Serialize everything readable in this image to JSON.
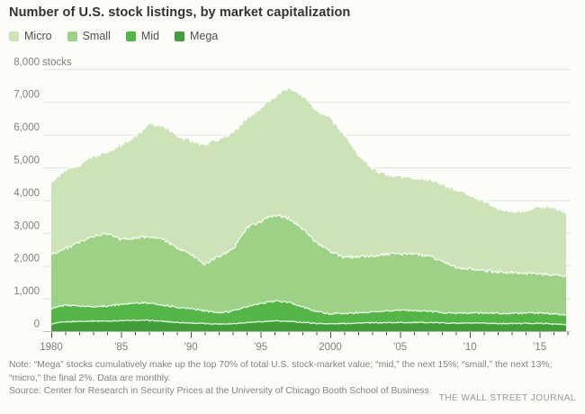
{
  "title": "Number of U.S. stock listings, by market capitalization",
  "legend": [
    {
      "label": "Micro"
    },
    {
      "label": "Small"
    },
    {
      "label": "Mid"
    },
    {
      "label": "Mega"
    }
  ],
  "chart_data": {
    "type": "area",
    "stacked": true,
    "title": "Number of U.S. stock listings, by market capitalization",
    "unit_label": "stocks",
    "grid": "horizontal",
    "legend_position": "top-left",
    "ylim": [
      0,
      8000
    ],
    "xlim": [
      1980,
      2017
    ],
    "x": [
      1980,
      1981,
      1982,
      1983,
      1984,
      1985,
      1986,
      1987,
      1988,
      1989,
      1990,
      1991,
      1992,
      1993,
      1994,
      1995,
      1996,
      1997,
      1998,
      1999,
      2000,
      2001,
      2002,
      2003,
      2004,
      2005,
      2006,
      2007,
      2008,
      2009,
      2010,
      2011,
      2012,
      2013,
      2014,
      2015,
      2016,
      2016.9
    ],
    "series": [
      {
        "name": "Mega",
        "color": "#419e39",
        "values": [
          220,
          285,
          300,
          310,
          310,
          320,
          330,
          330,
          300,
          270,
          250,
          230,
          220,
          230,
          265,
          290,
          310,
          300,
          270,
          240,
          225,
          235,
          250,
          255,
          260,
          265,
          265,
          265,
          255,
          245,
          245,
          240,
          235,
          235,
          240,
          240,
          220,
          195
        ]
      },
      {
        "name": "Mid",
        "color": "#55b648",
        "values": [
          460,
          515,
          470,
          435,
          460,
          500,
          535,
          530,
          500,
          460,
          440,
          390,
          340,
          390,
          475,
          550,
          610,
          580,
          480,
          360,
          300,
          305,
          310,
          325,
          360,
          375,
          365,
          350,
          315,
          300,
          310,
          320,
          310,
          310,
          315,
          320,
          310,
          305
        ]
      },
      {
        "name": "Small",
        "color": "#9dd186",
        "values": [
          1670,
          1720,
          1930,
          2155,
          2210,
          1980,
          1985,
          2030,
          2000,
          1820,
          1660,
          1430,
          1730,
          1860,
          2410,
          2510,
          2630,
          2570,
          2400,
          2100,
          1925,
          1710,
          1720,
          1720,
          1730,
          1700,
          1740,
          1685,
          1580,
          1405,
          1345,
          1290,
          1275,
          1245,
          1215,
          1200,
          1190,
          1190
        ]
      },
      {
        "name": "Micro",
        "color": "#cce2b7",
        "values": [
          2210,
          2380,
          2380,
          2450,
          2470,
          2890,
          3100,
          3410,
          3500,
          3420,
          3480,
          3640,
          3590,
          3570,
          3350,
          3450,
          3600,
          4000,
          4050,
          4050,
          4050,
          3750,
          3120,
          2650,
          2450,
          2380,
          2310,
          2320,
          2350,
          2380,
          2250,
          2130,
          1940,
          1860,
          1910,
          2050,
          2070,
          1930
        ]
      }
    ],
    "y_ticks": [
      {
        "label": "8,000",
        "value": 8000
      },
      {
        "label": "7,000",
        "value": 7000
      },
      {
        "label": "6,000",
        "value": 6000
      },
      {
        "label": "5,000",
        "value": 5000
      },
      {
        "label": "4,000",
        "value": 4000
      },
      {
        "label": "3,000",
        "value": 3000
      },
      {
        "label": "2,000",
        "value": 2000
      },
      {
        "label": "1,000",
        "value": 1000
      },
      {
        "label": "0",
        "value": 0
      }
    ],
    "x_ticks": [
      {
        "label": "1980",
        "year": 1980
      },
      {
        "label": "’85",
        "year": 1985
      },
      {
        "label": "’90",
        "year": 1990
      },
      {
        "label": "’95",
        "year": 1995
      },
      {
        "label": "2000",
        "year": 2000
      },
      {
        "label": "’05",
        "year": 2005
      },
      {
        "label": "’10",
        "year": 2010
      },
      {
        "label": "’15",
        "year": 2015
      }
    ]
  },
  "note_lines": [
    "Note: “Mega” stocks cumulatively make up the top 70% of total U.S. stock-market value; “mid,” the next 15%; “small,” the next 13%;",
    "“micro,” the final 2%. Data are monthly."
  ],
  "source": "Source: Center for Research in Security Prices at the University of Chicago Booth School of Business",
  "credit": "THE WALL STREET JOURNAL"
}
